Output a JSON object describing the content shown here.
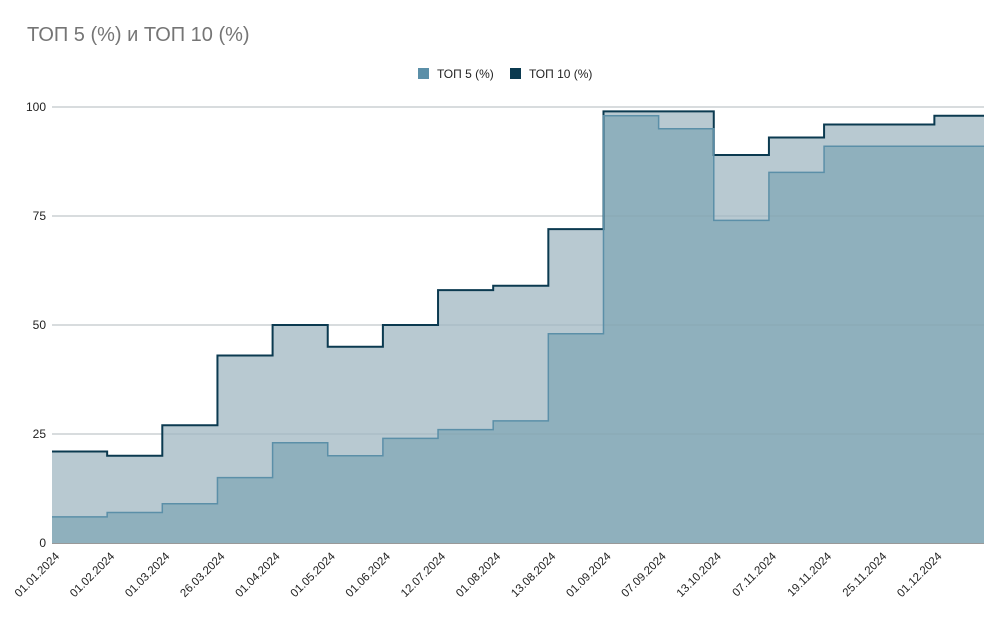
{
  "chart_data": {
    "type": "area",
    "step": true,
    "title": "ТОП 5 (%) и ТОП 10 (%)",
    "xlabel": "",
    "ylabel": "",
    "ylim": [
      0,
      100
    ],
    "yticks": [
      0,
      25,
      50,
      75,
      100
    ],
    "grid": true,
    "legend_position": "top-center",
    "x": [
      "01.01.2024",
      "01.02.2024",
      "01.03.2024",
      "26.03.2024",
      "01.04.2024",
      "01.05.2024",
      "01.06.2024",
      "12.07.2024",
      "01.08.2024",
      "13.08.2024",
      "01.09.2024",
      "07.09.2024",
      "13.10.2024",
      "07.11.2024",
      "19.11.2024",
      "25.11.2024",
      "01.12.2024"
    ],
    "series": [
      {
        "name": "ТОП 5 (%)",
        "color": "#5b8fa8",
        "fill": "#8fb0bd",
        "values": [
          6,
          7,
          9,
          15,
          23,
          20,
          24,
          26,
          28,
          48,
          98,
          95,
          74,
          85,
          91,
          91,
          91
        ]
      },
      {
        "name": "ТОП 10 (%)",
        "color": "#0b3a50",
        "fill": "#b8c9d1",
        "values": [
          21,
          20,
          27,
          43,
          50,
          45,
          50,
          58,
          59,
          72,
          99,
          99,
          89,
          93,
          96,
          96,
          98
        ]
      }
    ]
  }
}
